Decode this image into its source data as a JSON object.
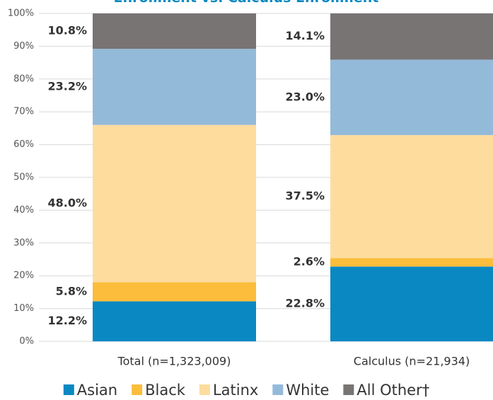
{
  "chart_data": {
    "type": "stacked_bar",
    "title": "Enrollment vs. Calculus Enrollment",
    "categories": [
      "Total (n=1,323,009)",
      "Calculus (n=21,934)"
    ],
    "series": [
      {
        "name": "Asian",
        "color": "#0a88c2",
        "values": [
          12.2,
          22.8
        ],
        "value_labels": [
          "12.2%",
          "22.8%"
        ]
      },
      {
        "name": "Black",
        "color": "#fbbd3b",
        "values": [
          5.8,
          2.6
        ],
        "value_labels": [
          "5.8%",
          "2.6%"
        ]
      },
      {
        "name": "Latinx",
        "color": "#fddc9e",
        "values": [
          48.0,
          37.5
        ],
        "value_labels": [
          "48.0%",
          "37.5%"
        ]
      },
      {
        "name": "White",
        "color": "#94bada",
        "values": [
          23.2,
          23.0
        ],
        "value_labels": [
          "23.2%",
          "23.0%"
        ]
      },
      {
        "name": "All Other†",
        "color": "#797474",
        "values": [
          10.8,
          14.1
        ],
        "value_labels": [
          "10.8%",
          "14.1%"
        ]
      }
    ],
    "ylim": [
      0,
      100
    ],
    "yticks": [
      {
        "value": 0,
        "label": "0%"
      },
      {
        "value": 10,
        "label": "10%"
      },
      {
        "value": 20,
        "label": "20%"
      },
      {
        "value": 30,
        "label": "30%"
      },
      {
        "value": 40,
        "label": "40%"
      },
      {
        "value": 50,
        "label": "50%"
      },
      {
        "value": 60,
        "label": "60%"
      },
      {
        "value": 70,
        "label": "70%"
      },
      {
        "value": 80,
        "label": "80%"
      },
      {
        "value": 90,
        "label": "90%"
      },
      {
        "value": 100,
        "label": "100%"
      }
    ],
    "grid": true,
    "legend": "bottom"
  }
}
